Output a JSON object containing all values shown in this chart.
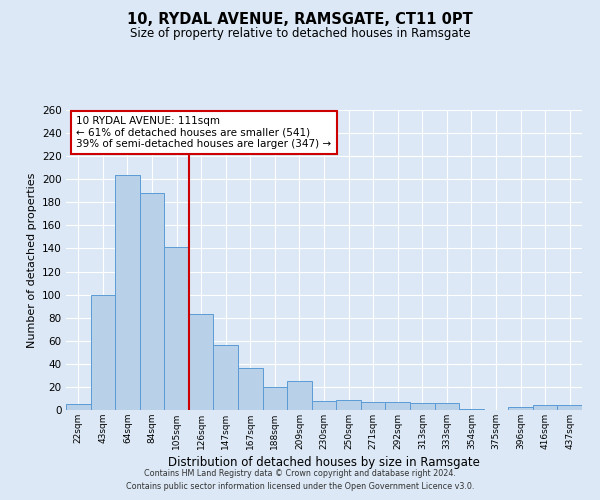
{
  "title": "10, RYDAL AVENUE, RAMSGATE, CT11 0PT",
  "subtitle": "Size of property relative to detached houses in Ramsgate",
  "xlabel": "Distribution of detached houses by size in Ramsgate",
  "ylabel": "Number of detached properties",
  "bar_labels": [
    "22sqm",
    "43sqm",
    "64sqm",
    "84sqm",
    "105sqm",
    "126sqm",
    "147sqm",
    "167sqm",
    "188sqm",
    "209sqm",
    "230sqm",
    "250sqm",
    "271sqm",
    "292sqm",
    "313sqm",
    "333sqm",
    "354sqm",
    "375sqm",
    "396sqm",
    "416sqm",
    "437sqm"
  ],
  "bar_values": [
    5,
    100,
    204,
    188,
    141,
    83,
    56,
    36,
    20,
    25,
    8,
    9,
    7,
    7,
    6,
    6,
    1,
    0,
    3,
    4,
    4
  ],
  "bar_color": "#b8d0e8",
  "bar_edgecolor": "#5b9bd5",
  "bar_linewidth": 0.7,
  "vline_x": 4.5,
  "vline_color": "#cc0000",
  "vline_linewidth": 1.5,
  "annotation_box_title": "10 RYDAL AVENUE: 111sqm",
  "annotation_line1": "← 61% of detached houses are smaller (541)",
  "annotation_line2": "39% of semi-detached houses are larger (347) →",
  "annotation_box_edgecolor": "#cc0000",
  "annotation_box_facecolor": "#ffffff",
  "ylim": [
    0,
    260
  ],
  "yticks": [
    0,
    20,
    40,
    60,
    80,
    100,
    120,
    140,
    160,
    180,
    200,
    220,
    240,
    260
  ],
  "bg_color": "#dce8f5",
  "grid_color": "#ffffff",
  "footer_line1": "Contains HM Land Registry data © Crown copyright and database right 2024.",
  "footer_line2": "Contains public sector information licensed under the Open Government Licence v3.0."
}
